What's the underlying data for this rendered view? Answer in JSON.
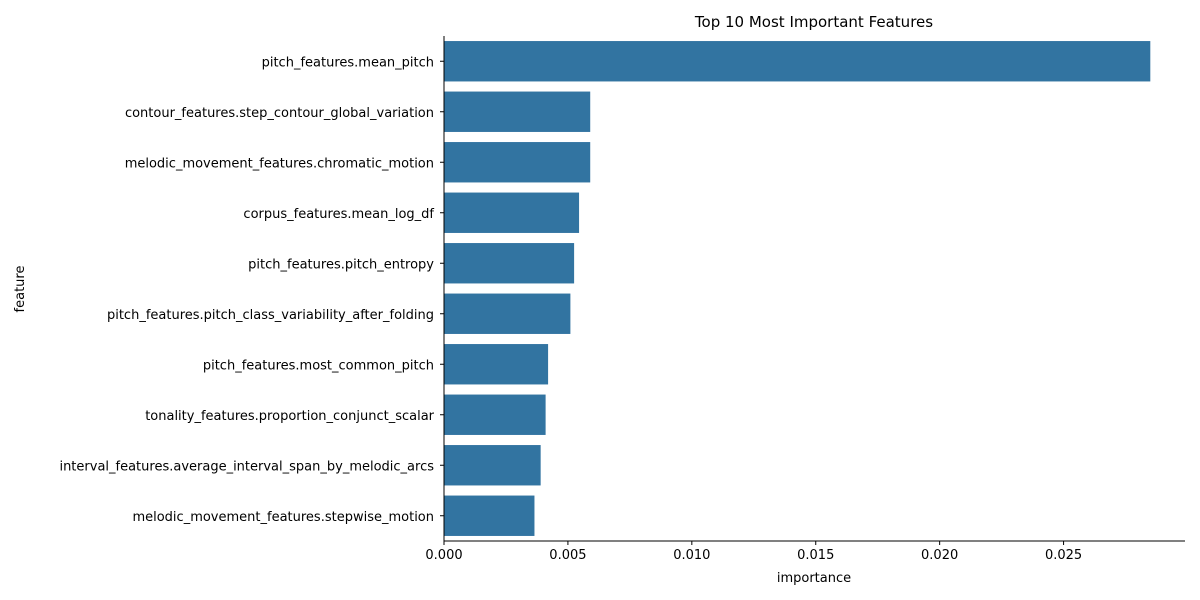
{
  "chart_data": {
    "type": "bar",
    "orientation": "horizontal",
    "title": "Top 10 Most Important Features",
    "xlabel": "importance",
    "ylabel": "feature",
    "categories": [
      "pitch_features.mean_pitch",
      "contour_features.step_contour_global_variation",
      "melodic_movement_features.chromatic_motion",
      "corpus_features.mean_log_df",
      "pitch_features.pitch_entropy",
      "pitch_features.pitch_class_variability_after_folding",
      "pitch_features.most_common_pitch",
      "tonality_features.proportion_conjunct_scalar",
      "interval_features.average_interval_span_by_melodic_arcs",
      "melodic_movement_features.stepwise_motion"
    ],
    "values": [
      0.0285,
      0.0059,
      0.0059,
      0.00545,
      0.00525,
      0.0051,
      0.0042,
      0.0041,
      0.0039,
      0.00365
    ],
    "xlim": [
      0,
      0.0299
    ],
    "xticks": [
      0.0,
      0.005,
      0.01,
      0.015,
      0.02,
      0.025
    ],
    "xtick_labels": [
      "0.000",
      "0.005",
      "0.010",
      "0.015",
      "0.020",
      "0.025"
    ],
    "grid": false,
    "bar_color": "#3274a1"
  }
}
